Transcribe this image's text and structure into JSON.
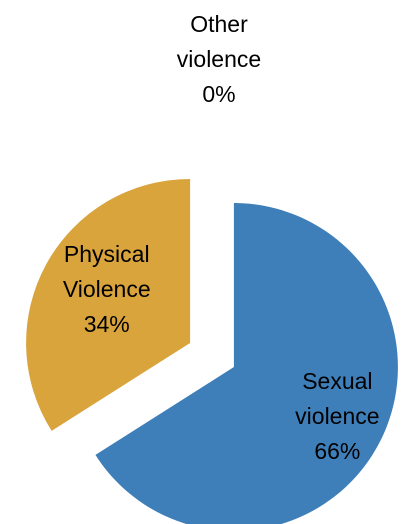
{
  "chart_data": {
    "type": "pie",
    "exploded": true,
    "legend": "none",
    "slices": [
      {
        "label_lines": [
          "Sexual",
          "violence"
        ],
        "value": 66,
        "value_label": "66%",
        "color": "#3f7fb9"
      },
      {
        "label_lines": [
          "Other",
          "violence"
        ],
        "value": 0,
        "value_label": "0%",
        "color": "#8aa64a"
      },
      {
        "label_lines": [
          "Physical",
          "Violence"
        ],
        "value": 34,
        "value_label": "34%",
        "color": "#d9a43c"
      }
    ]
  }
}
